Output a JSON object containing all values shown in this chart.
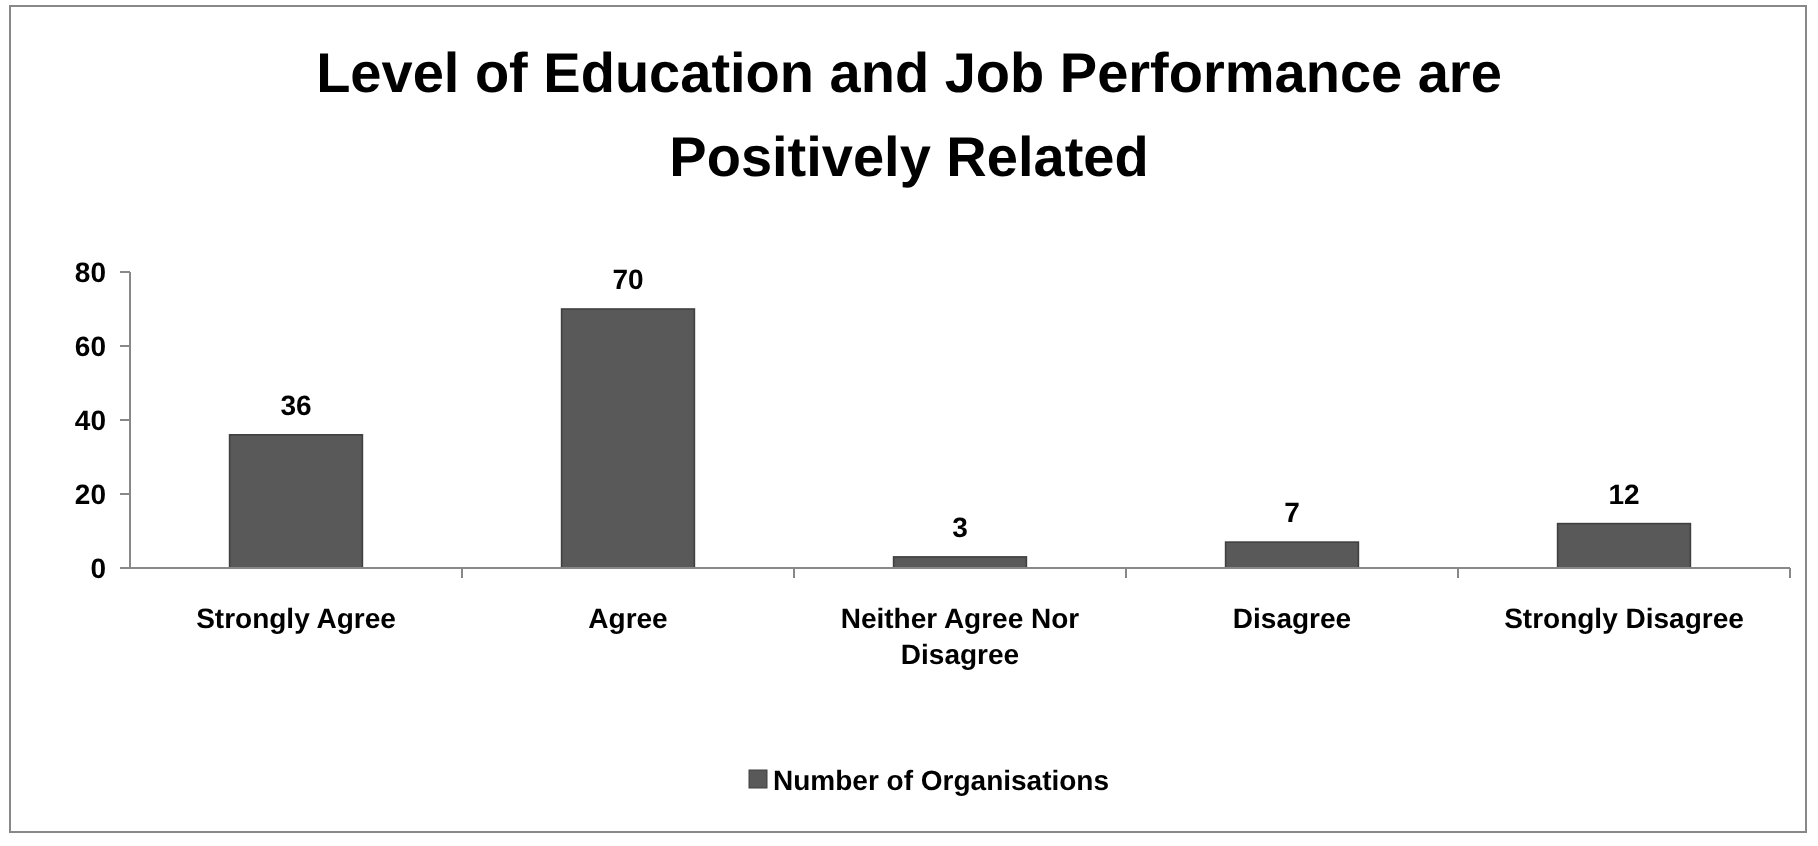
{
  "chart_data": {
    "type": "bar",
    "title": "Level of Education and Job Performance are Positively Related",
    "categories": [
      "Strongly Agree",
      "Agree",
      "Neither Agree Nor Disagree",
      "Disagree",
      "Strongly Disagree"
    ],
    "series": [
      {
        "name": "Number of Organisations",
        "color": "#595959",
        "values": [
          36,
          70,
          3,
          7,
          12
        ]
      }
    ],
    "ylim": [
      0,
      80
    ],
    "yticks": [
      0,
      20,
      40,
      60,
      80
    ],
    "grid": false,
    "legend": "bottom",
    "data_labels": true
  }
}
